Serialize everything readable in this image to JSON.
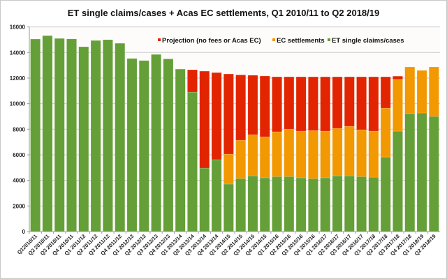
{
  "chart_data": {
    "type": "bar",
    "stacked": true,
    "title": "ET single claims/cases + Acas EC settlements, Q1 2010/11 to Q2 2018/19",
    "xlabel": "",
    "ylabel": "",
    "ylim": [
      0,
      16000
    ],
    "yticks": [
      0,
      2000,
      4000,
      6000,
      8000,
      10000,
      12000,
      14000,
      16000
    ],
    "grid": true,
    "legend_position": "top-right",
    "categories": [
      "Q12010/11",
      "Q2 2010/11",
      "Q3 2010/11",
      "Q4 2010/11",
      "Q1 2011/12",
      "Q2 2011/12",
      "Q3 2011/12",
      "Q4 2011/12",
      "Q1 2012/13",
      "Q2 2012/13",
      "Q3 2012/13",
      "Q4 2012/13",
      "Q1 2013/14",
      "Q2 2013/14",
      "Q3 2013/14",
      "Q4 2013/14",
      "Q1 2014/15",
      "Q2 2014/15",
      "Q3 2014/15",
      "Q4 2014/15",
      "Q1 2015/16",
      "Q2 2015/16",
      "Q3 2015/16",
      "Q4 2015/16",
      "Q1 2016/17",
      "Q2 2016/17",
      "Q3 2016/17",
      "Q4 2016/17",
      "Q1 2017/18",
      "Q2 2017/18",
      "Q3 2017/18",
      "Q4 2017/18",
      "Q1 2018/19",
      "Q2 2018/19"
    ],
    "series": [
      {
        "name": "ET single claims/cases",
        "color": "#659F37",
        "values": [
          15050,
          15320,
          15100,
          15060,
          14450,
          14940,
          15000,
          14720,
          13530,
          13370,
          13850,
          13500,
          12700,
          10900,
          4960,
          5620,
          3710,
          4150,
          4360,
          4200,
          4300,
          4300,
          4200,
          4140,
          4200,
          4360,
          4360,
          4300,
          4250,
          5830,
          7850,
          9220,
          9270,
          9000
        ]
      },
      {
        "name": "EC settlements",
        "color": "#F29800",
        "values": [
          0,
          0,
          0,
          0,
          0,
          0,
          0,
          0,
          0,
          0,
          0,
          0,
          0,
          0,
          0,
          0,
          2340,
          2990,
          3220,
          3210,
          3500,
          3710,
          3650,
          3760,
          3650,
          3710,
          3870,
          3660,
          3600,
          3820,
          4050,
          3650,
          3330,
          3870
        ]
      },
      {
        "name": "Projection (no fees or Acas EC)",
        "color": "#E22400",
        "values": [
          0,
          0,
          0,
          0,
          0,
          0,
          0,
          0,
          0,
          0,
          0,
          0,
          0,
          1750,
          7580,
          6810,
          6270,
          5110,
          4640,
          4750,
          4300,
          4090,
          4250,
          4200,
          4250,
          4030,
          3870,
          4140,
          4250,
          2450,
          250,
          0,
          0,
          0
        ]
      }
    ],
    "legend": [
      {
        "label": "Projection (no fees or Acas EC)",
        "color": "#E22400"
      },
      {
        "label": "EC settlements",
        "color": "#F29800"
      },
      {
        "label": "ET single claims/cases",
        "color": "#659F37"
      }
    ]
  }
}
